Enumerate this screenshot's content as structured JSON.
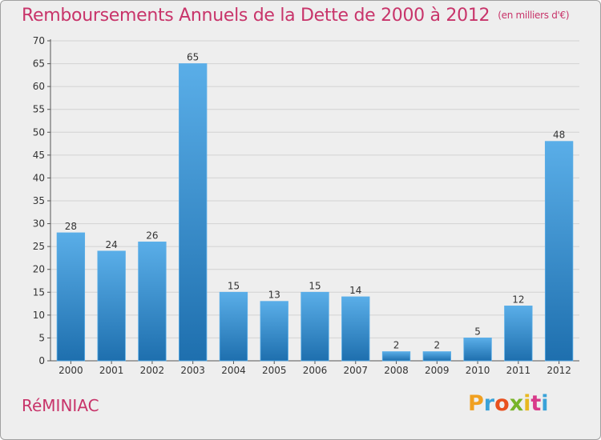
{
  "header": {
    "title": "Remboursements Annuels de la Dette de 2000 à 2012",
    "unit": "(en milliers d'€)"
  },
  "footer": {
    "commune": "RéMINIAC",
    "logo": "Proxiti"
  },
  "colors": {
    "title": "#c8346a",
    "bar_top": "#5aaee8",
    "bar_bottom": "#1e6fae",
    "background": "#eeeeee",
    "grid": "#d2d2d2"
  },
  "chart_data": {
    "type": "bar",
    "title": "Remboursements Annuels de la Dette de 2000 à 2012",
    "xlabel": "",
    "ylabel": "",
    "categories": [
      "2000",
      "2001",
      "2002",
      "2003",
      "2004",
      "2005",
      "2006",
      "2007",
      "2008",
      "2009",
      "2010",
      "2011",
      "2012"
    ],
    "values": [
      28,
      24,
      26,
      65,
      15,
      13,
      15,
      14,
      2,
      2,
      5,
      12,
      48
    ],
    "ylim": [
      0,
      70
    ],
    "yticks": [
      0,
      5,
      10,
      15,
      20,
      25,
      30,
      35,
      40,
      45,
      50,
      55,
      60,
      65,
      70
    ],
    "grid": true,
    "data_labels": true
  }
}
